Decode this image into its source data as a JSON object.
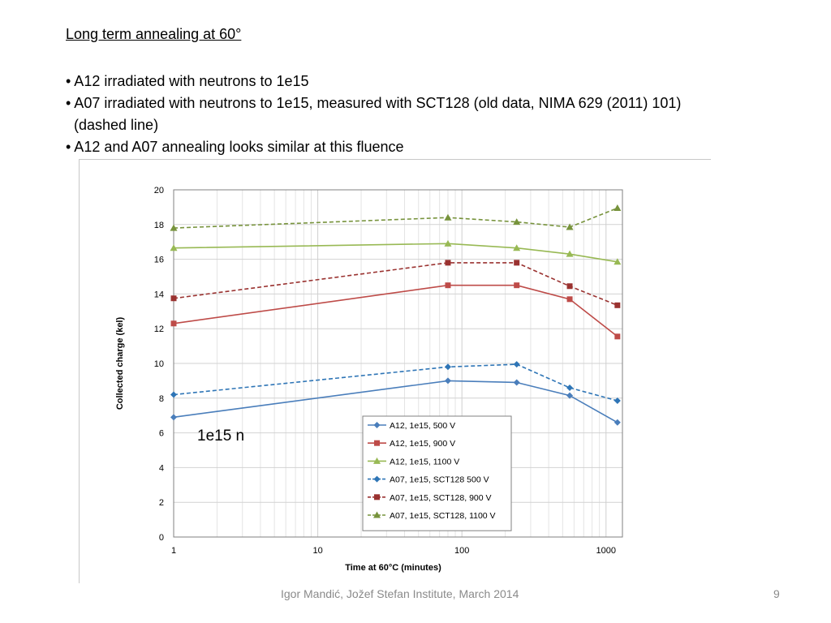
{
  "slide": {
    "heading": "Long term annealing at 60°",
    "bullets": [
      "• A12 irradiated with neutrons to 1e15",
      "• A07 irradiated with neutrons to 1e15, measured with SCT128 (old data,  NIMA 629 (2011) 101)",
      "(dashed line)",
      "• A12 and A07 annealing looks similar at this fluence"
    ],
    "footer": "Igor Mandić, Jožef Stefan Institute, March 2014",
    "page_number": "9"
  },
  "chart_data": {
    "type": "line",
    "xlabel": "Time at 60°C (minutes)",
    "ylabel": "Collected charge (kel)",
    "x_scale": "log",
    "xlim": [
      1,
      1300
    ],
    "ylim": [
      0,
      20
    ],
    "x_ticks": [
      1,
      10,
      100,
      1000
    ],
    "y_ticks": [
      0,
      2,
      4,
      6,
      8,
      10,
      12,
      14,
      16,
      18,
      20
    ],
    "grid": true,
    "legend_position": "bottom-right",
    "annotation": "1e15 n",
    "series": [
      {
        "name": "A12, 1e15, 500 V",
        "color": "#4a7ebb",
        "dash": false,
        "marker": "diamond",
        "x": [
          1,
          80,
          240,
          560,
          1200
        ],
        "y": [
          6.9,
          9.0,
          8.9,
          8.15,
          6.6
        ]
      },
      {
        "name": "A12, 1e15, 900 V",
        "color": "#be4b48",
        "dash": false,
        "marker": "square",
        "x": [
          1,
          80,
          240,
          560,
          1200
        ],
        "y": [
          12.3,
          14.5,
          14.5,
          13.7,
          11.55
        ]
      },
      {
        "name": "A12, 1e15,  1100 V",
        "color": "#98b954",
        "dash": false,
        "marker": "triangle",
        "x": [
          1,
          80,
          240,
          560,
          1200
        ],
        "y": [
          16.65,
          16.9,
          16.65,
          16.3,
          15.85
        ]
      },
      {
        "name": "A07, 1e15, SCT128 500 V",
        "color": "#2e75b6",
        "dash": true,
        "marker": "diamond",
        "x": [
          1,
          80,
          240,
          560,
          1200
        ],
        "y": [
          8.2,
          9.8,
          9.95,
          8.6,
          7.85
        ]
      },
      {
        "name": "A07, 1e15, SCT128, 900 V",
        "color": "#9a3230",
        "dash": true,
        "marker": "square",
        "x": [
          1,
          80,
          240,
          560,
          1200
        ],
        "y": [
          13.75,
          15.8,
          15.8,
          14.45,
          13.35
        ]
      },
      {
        "name": "A07, 1e15, SCT128, 1100 V",
        "color": "#77933c",
        "dash": true,
        "marker": "triangle",
        "x": [
          1,
          80,
          240,
          560,
          1200
        ],
        "y": [
          17.8,
          18.4,
          18.15,
          17.85,
          18.95
        ]
      }
    ]
  }
}
